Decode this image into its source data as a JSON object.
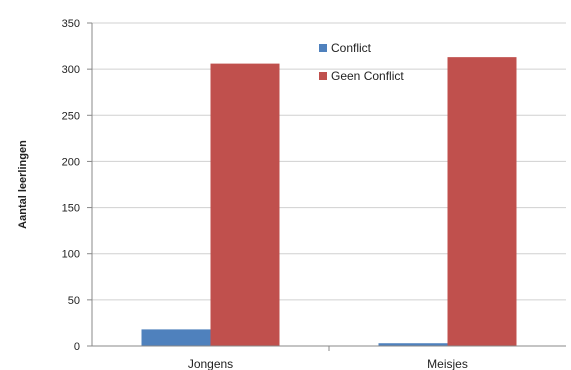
{
  "chart_data": {
    "type": "bar",
    "categories": [
      "Jongens",
      "Meisjes"
    ],
    "series": [
      {
        "name": "Conflict",
        "values": [
          18,
          3
        ],
        "color": "#4f81bd"
      },
      {
        "name": "Geen Conflict",
        "values": [
          306,
          313
        ],
        "color": "#c0504d"
      }
    ],
    "ylabel": "Aantal leerlingen",
    "ylim": [
      0,
      350
    ],
    "yticks": [
      0,
      50,
      100,
      150,
      200,
      250,
      300,
      350
    ],
    "grid": true,
    "legend_position": "top-right"
  }
}
